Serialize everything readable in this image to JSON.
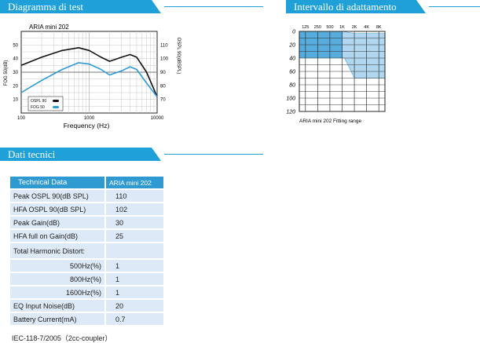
{
  "sections": {
    "test": "Diagramma di test",
    "range": "Intervallo di adattamento",
    "tech": "Dati tecnici"
  },
  "freq_chart": {
    "title": "ARIA mini 202",
    "ylabel_left": "FOG 50(dB)",
    "ylabel_right": "OSPL 90(dBSPL)",
    "xlabel": "Frequency (Hz)",
    "left_ticks": [
      "50",
      "40",
      "30",
      "20",
      "10"
    ],
    "right_ticks": [
      "110",
      "100",
      "90",
      "80",
      "70"
    ],
    "x_ticks": [
      "100",
      "1000",
      "10000"
    ],
    "legend": [
      {
        "label": "OSPL 90",
        "color": "#111111"
      },
      {
        "label": "FOG 50",
        "color": "#2b9bd6"
      }
    ]
  },
  "chart_data": [
    {
      "type": "line",
      "title": "ARIA mini 202",
      "xlabel": "Frequency (Hz)",
      "ylabel": "FOG 50(dB)",
      "y2label": "OSPL 90(dBSPL)",
      "xscale": "log",
      "xlim": [
        100,
        10000
      ],
      "ylim_left": [
        0,
        60
      ],
      "ylim_right": [
        60,
        120
      ],
      "grid": true,
      "legend_position": "bottom-left",
      "series": [
        {
          "name": "OSPL 90",
          "axis": "right",
          "color": "#111111",
          "x": [
            100,
            200,
            400,
            700,
            1000,
            1500,
            2000,
            3000,
            4000,
            5000,
            7000,
            10000
          ],
          "y": [
            95,
            101,
            106,
            108,
            106,
            101,
            98,
            101,
            103,
            101,
            90,
            72
          ]
        },
        {
          "name": "FOG 50",
          "axis": "left",
          "color": "#2b9bd6",
          "x": [
            100,
            200,
            400,
            700,
            1000,
            1500,
            2000,
            3000,
            4000,
            5000,
            7000,
            10000
          ],
          "y": [
            15,
            24,
            32,
            37,
            36,
            32,
            28,
            31,
            34,
            32,
            22,
            12
          ]
        }
      ]
    },
    {
      "type": "area",
      "title": "ARIA mini 202 Fitting range",
      "xscale": "log",
      "x_ticks": [
        "125",
        "250",
        "500",
        "1K",
        "2K",
        "4K",
        "8K"
      ],
      "x": [
        125,
        250,
        500,
        1000,
        2000,
        4000,
        8000
      ],
      "ylim": [
        0,
        120
      ],
      "y_inverted": true,
      "y_ticks": [
        "0",
        "20",
        "40",
        "60",
        "80",
        "100",
        "120"
      ],
      "series": [
        {
          "name": "upper",
          "y": [
            0,
            0,
            0,
            0,
            3,
            3,
            3
          ]
        },
        {
          "name": "lower",
          "y": [
            40,
            40,
            40,
            40,
            70,
            70,
            70
          ]
        }
      ]
    }
  ],
  "range_chart": {
    "caption": "ARIA mini 202 Fitting range",
    "x_ticks": [
      "125",
      "250",
      "500",
      "1K",
      "2K",
      "4K",
      "8K"
    ],
    "y_ticks": [
      "0",
      "20",
      "40",
      "60",
      "80",
      "100",
      "120"
    ]
  },
  "tech_table": {
    "header": [
      "Technical Data",
      "ARIA mini 202"
    ],
    "rows": [
      {
        "label": "Peak OSPL 90(dB SPL)",
        "value": "110"
      },
      {
        "label": "HFA OSPL 90(dB SPL)",
        "value": "102"
      },
      {
        "label": "Peak Gain(dB)",
        "value": "30"
      },
      {
        "label": "HFA  full on Gain(dB)",
        "value": "25"
      },
      {
        "label": "Total Harmonic Distort:",
        "value": ""
      },
      {
        "label": "500Hz(%)",
        "value": "1"
      },
      {
        "label": "800Hz(%)",
        "value": "1"
      },
      {
        "label": "1600Hz(%)",
        "value": "1"
      },
      {
        "label": "EQ Input Noise(dB)",
        "value": "20"
      },
      {
        "label": "Battery Current(mA)",
        "value": "0.7"
      }
    ]
  },
  "footnote": "IEC-118-7/2005（2cc-coupler）"
}
